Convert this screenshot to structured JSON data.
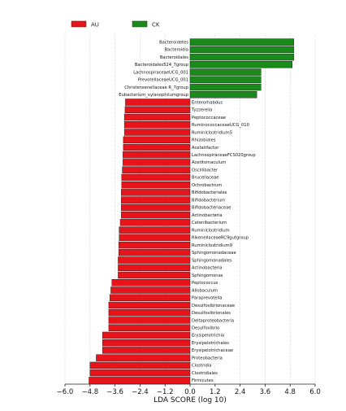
{
  "chart_data": {
    "type": "bar",
    "orientation": "horizontal",
    "xlabel": "LDA SCORE (log 10)",
    "xlim": [
      -6.0,
      6.0
    ],
    "xticks": [
      "−6.0",
      "−4.8",
      "−3.6",
      "−2.4",
      "−1.2",
      "0.0",
      "1.2",
      "2.4",
      "3.6",
      "4.8",
      "6.0"
    ],
    "grid": "vertical dotted",
    "legend": {
      "placement": "top-left",
      "entries": [
        {
          "name": "AU",
          "color": "#e8141b"
        },
        {
          "name": "CK",
          "color": "#1a8a1a"
        }
      ]
    },
    "series": [
      {
        "name": "CK",
        "color": "#1a8a1a",
        "categories": [
          "Bacteroidetes",
          "Bacteroidia",
          "Bacteroidales",
          "Bacteroidales524_7group",
          "LachnospiraceaeUCG_001",
          "PrevotellaceaeUCG_001",
          "Christensenellaceae R_7group",
          "Eubacterium_xylanophilumgroup"
        ],
        "values": [
          4.98,
          4.98,
          4.98,
          4.9,
          3.4,
          3.4,
          3.4,
          3.2
        ]
      },
      {
        "name": "AU",
        "color": "#e8141b",
        "categories": [
          "Enterorhabdus",
          "Tyzzerella",
          "Peptococcaceae",
          "RuminococcaceaeUCG_010",
          "Ruminiclostridium5",
          "Rhizobiales",
          "Acetatifactor",
          "LachnospiraceaeFCS020group",
          "Acetitomaculum",
          "Oscillibacter",
          "Brucellaceae",
          "Ochrobactrum",
          "Bifidobacteriales",
          "Bifidobacterium",
          "Bifidobacteriaceae",
          "Actinobacteria",
          "Catenibacterium",
          "Ruminiclostridium",
          "RikenellaceaeRC9gutgroup",
          "Ruminiclostridium9",
          "Sphingomonadaceae",
          "Sphingomonadales",
          "Actinobacteria",
          "Sphingomonas",
          "Peptococcus",
          "Allobaculum",
          "Paraprevotella",
          "Desulfovibrionaceae",
          "Desulfovibrionales",
          "Deltaproteobacteria",
          "Desulfovibrio",
          "Erysipelotrichia",
          "Erysipelotrichales",
          "Erysipelotrichaceae",
          "Proteobacteria",
          "Clostridia",
          "Clostridiales",
          "Firmicutes"
        ],
        "values": [
          -3.1,
          -3.12,
          -3.15,
          -3.15,
          -3.15,
          -3.2,
          -3.2,
          -3.22,
          -3.22,
          -3.25,
          -3.28,
          -3.28,
          -3.3,
          -3.3,
          -3.3,
          -3.3,
          -3.35,
          -3.4,
          -3.4,
          -3.42,
          -3.42,
          -3.45,
          -3.45,
          -3.45,
          -3.75,
          -3.8,
          -3.85,
          -3.9,
          -3.9,
          -3.9,
          -3.9,
          -4.2,
          -4.2,
          -4.2,
          -4.5,
          -4.8,
          -4.8,
          -4.85
        ]
      }
    ]
  }
}
